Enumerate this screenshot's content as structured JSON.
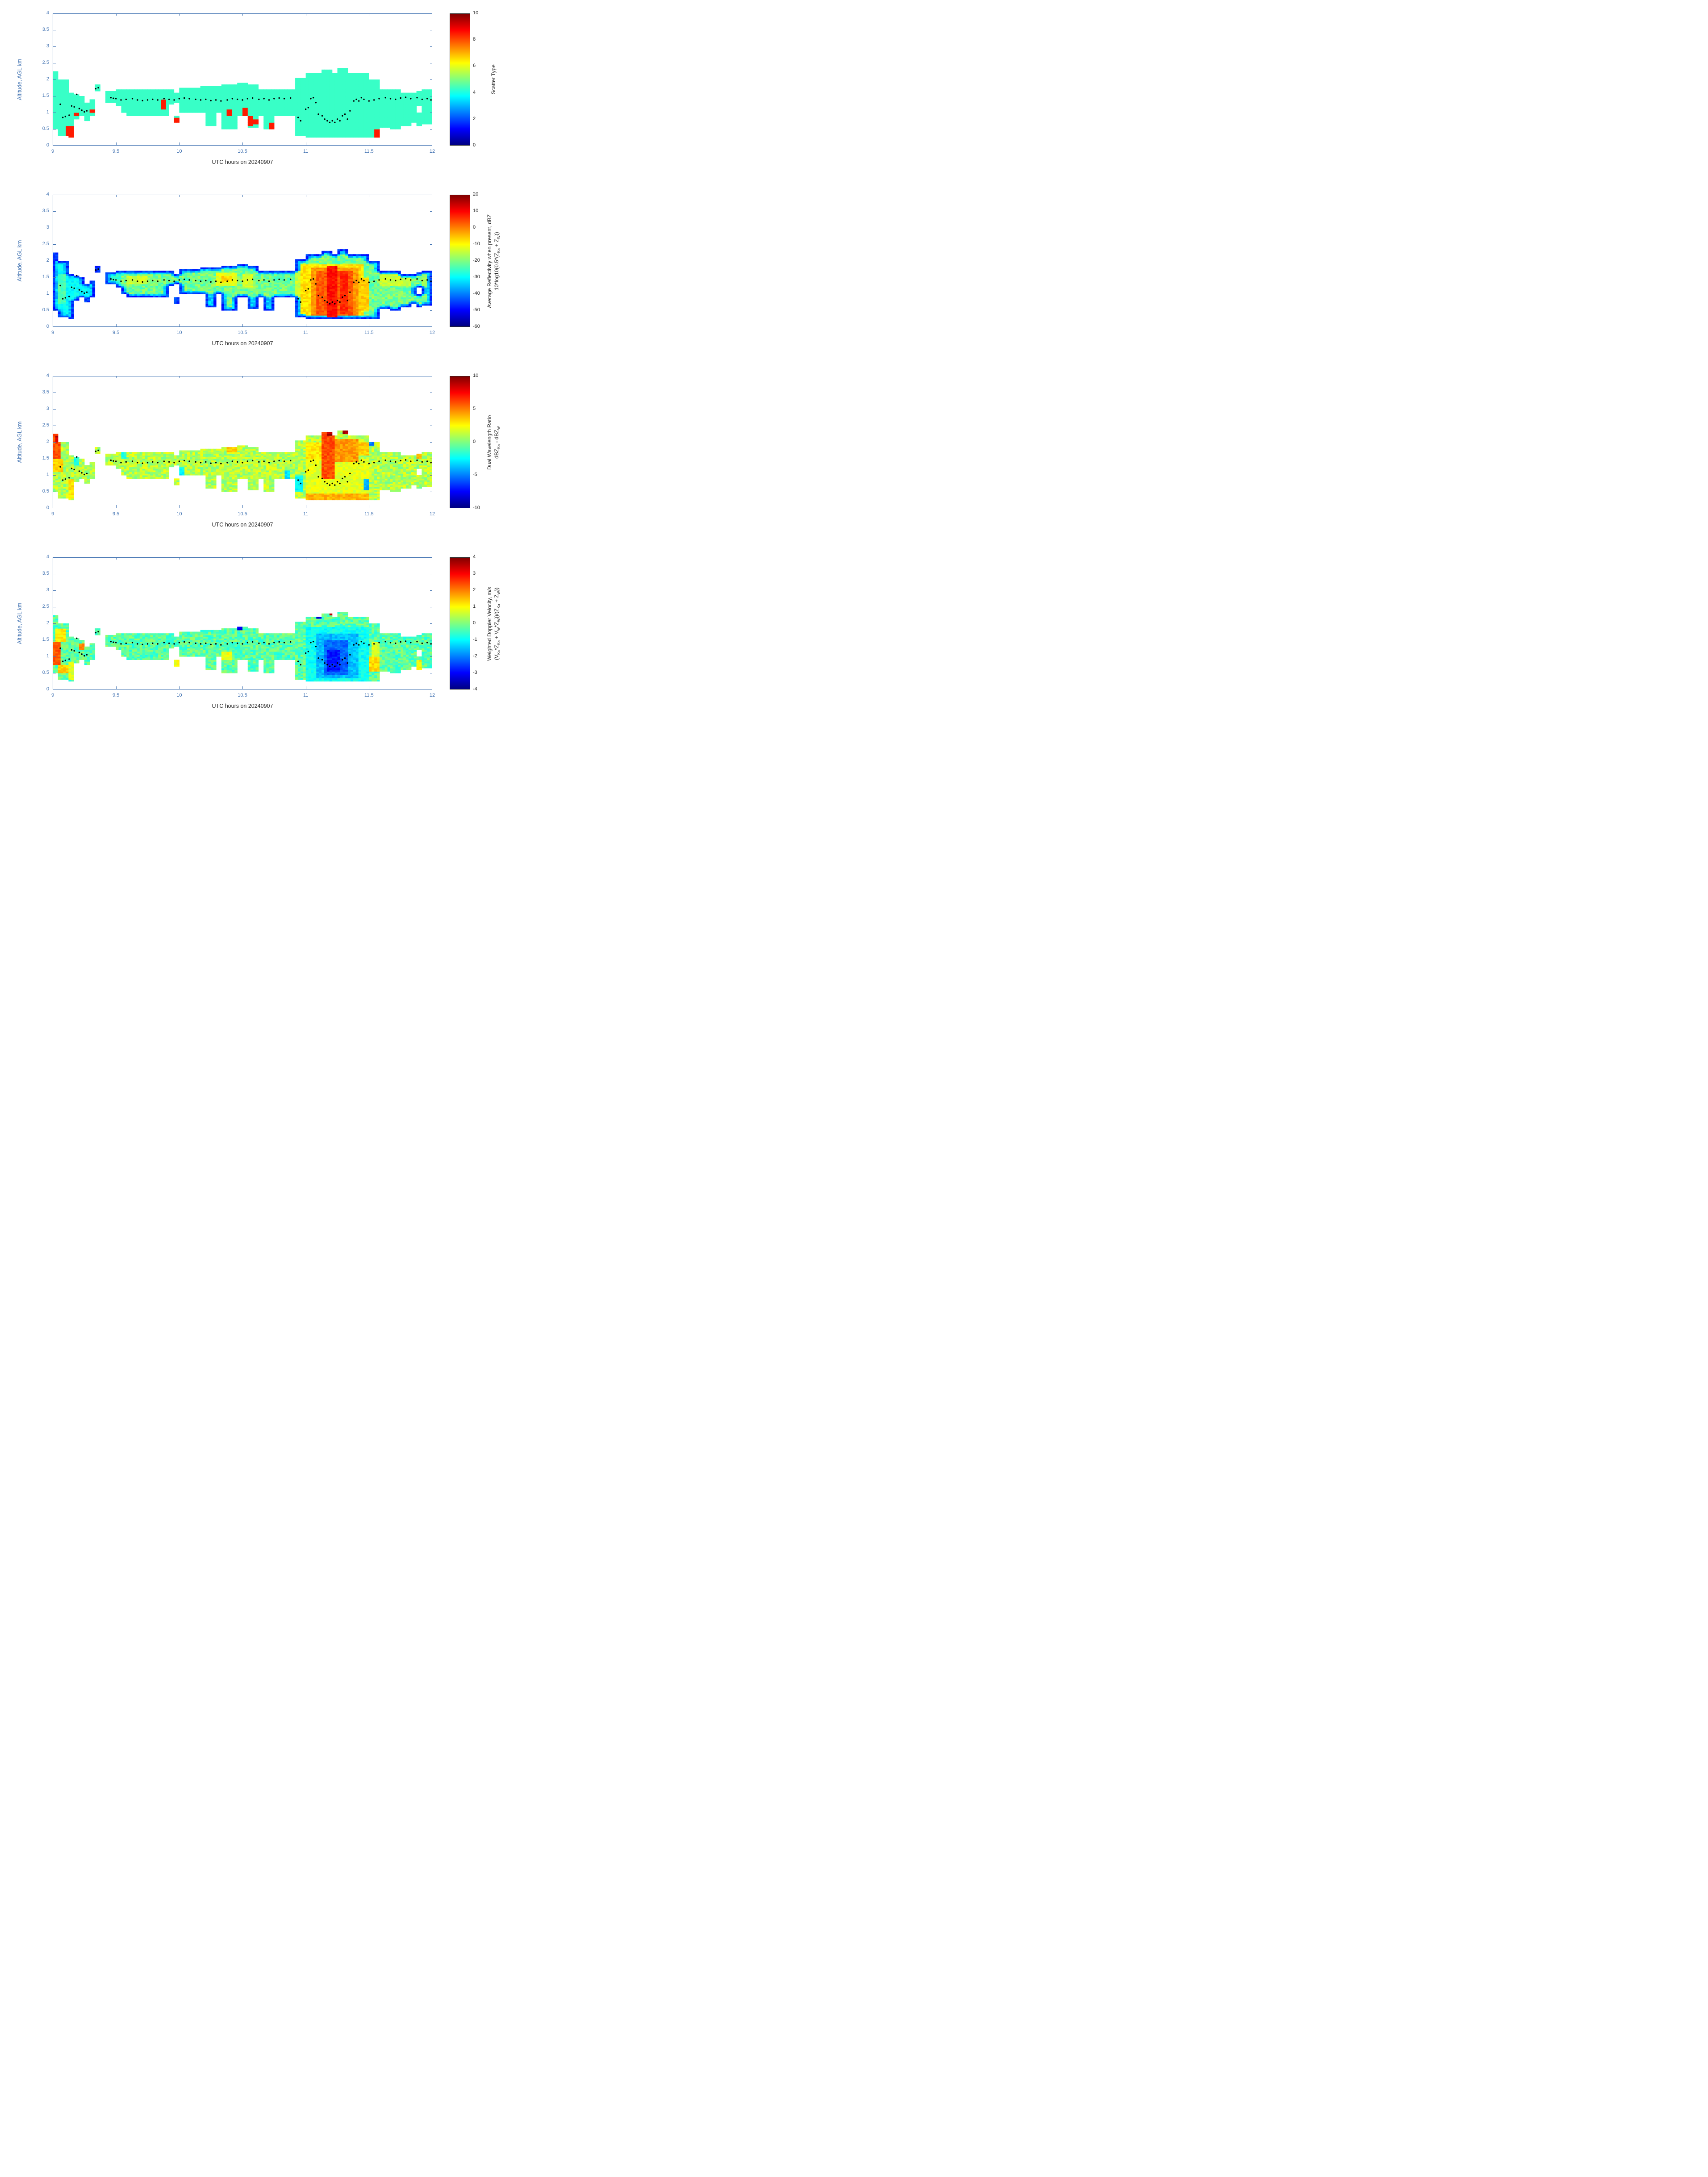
{
  "axes": {
    "x_label": "UTC hours on 20240907",
    "y_label": "Altitude, AGL km",
    "x_range": [
      9,
      12
    ],
    "y_range": [
      0,
      4
    ],
    "x_tick_labels": [
      "9",
      "9.5",
      "10",
      "10.5",
      "11",
      "11.5",
      "12"
    ],
    "x_tick_values": [
      9,
      9.5,
      10,
      10.5,
      11,
      11.5,
      12
    ],
    "y_tick_labels": [
      "0",
      "0.5",
      "1",
      "1.5",
      "2",
      "2.5",
      "3",
      "3.5",
      "4"
    ],
    "y_tick_values": [
      0,
      0.5,
      1,
      1.5,
      2,
      2.5,
      3,
      3.5,
      4
    ],
    "axis_color": "#4273b2",
    "label_color": "#262626"
  },
  "chart_shared": {
    "cloud_mask_rects": [
      [
        9.0,
        9.04,
        0.5,
        2.25
      ],
      [
        9.04,
        9.12,
        0.3,
        2.0
      ],
      [
        9.12,
        9.17,
        0.25,
        1.6
      ],
      [
        9.17,
        9.21,
        0.8,
        1.55
      ],
      [
        9.21,
        9.25,
        0.9,
        1.5
      ],
      [
        9.25,
        9.29,
        0.75,
        1.3
      ],
      [
        9.29,
        9.33,
        0.9,
        1.4
      ],
      [
        9.33,
        9.38,
        1.65,
        1.85
      ],
      [
        9.42,
        9.5,
        1.3,
        1.65
      ],
      [
        9.5,
        9.54,
        1.2,
        1.7
      ],
      [
        9.54,
        9.58,
        1.0,
        1.7
      ],
      [
        9.58,
        9.92,
        0.9,
        1.7
      ],
      [
        9.92,
        9.96,
        1.25,
        1.7
      ],
      [
        9.96,
        10.0,
        0.7,
        0.9
      ],
      [
        9.96,
        10.0,
        1.3,
        1.6
      ],
      [
        10.0,
        10.17,
        1.0,
        1.75
      ],
      [
        10.17,
        10.33,
        1.0,
        1.8
      ],
      [
        10.21,
        10.29,
        0.6,
        1.0
      ],
      [
        10.33,
        10.46,
        0.5,
        1.85
      ],
      [
        10.46,
        10.54,
        0.9,
        1.9
      ],
      [
        10.54,
        10.63,
        0.55,
        1.85
      ],
      [
        10.63,
        10.92,
        0.9,
        1.7
      ],
      [
        10.67,
        10.75,
        0.5,
        0.9
      ],
      [
        10.92,
        11.0,
        0.3,
        2.05
      ],
      [
        11.0,
        11.5,
        0.25,
        2.2
      ],
      [
        11.13,
        11.21,
        2.2,
        2.3
      ],
      [
        11.25,
        11.33,
        2.2,
        2.35
      ],
      [
        11.5,
        11.58,
        0.25,
        2.0
      ],
      [
        11.58,
        11.67,
        0.55,
        1.7
      ],
      [
        11.67,
        11.75,
        0.5,
        1.7
      ],
      [
        11.75,
        11.83,
        0.6,
        1.6
      ],
      [
        11.83,
        11.87,
        0.7,
        1.6
      ],
      [
        11.87,
        11.92,
        0.6,
        1.0
      ],
      [
        11.87,
        11.92,
        1.2,
        1.65
      ],
      [
        11.92,
        12.0,
        0.65,
        1.7
      ]
    ],
    "melting_layer_dots": [
      [
        9.06,
        1.25
      ],
      [
        9.08,
        0.85
      ],
      [
        9.1,
        0.88
      ],
      [
        9.13,
        0.92
      ],
      [
        9.15,
        1.2
      ],
      [
        9.17,
        1.17
      ],
      [
        9.19,
        1.55
      ],
      [
        9.21,
        1.12
      ],
      [
        9.23,
        1.07
      ],
      [
        9.25,
        1.02
      ],
      [
        9.27,
        1.05
      ],
      [
        9.34,
        1.72
      ],
      [
        9.36,
        1.75
      ],
      [
        9.46,
        1.45
      ],
      [
        9.48,
        1.43
      ],
      [
        9.5,
        1.42
      ],
      [
        9.54,
        1.38
      ],
      [
        9.58,
        1.4
      ],
      [
        9.63,
        1.42
      ],
      [
        9.67,
        1.38
      ],
      [
        9.71,
        1.36
      ],
      [
        9.75,
        1.38
      ],
      [
        9.79,
        1.4
      ],
      [
        9.83,
        1.38
      ],
      [
        9.88,
        1.42
      ],
      [
        9.92,
        1.4
      ],
      [
        9.96,
        1.38
      ],
      [
        10.0,
        1.42
      ],
      [
        10.04,
        1.44
      ],
      [
        10.08,
        1.42
      ],
      [
        10.13,
        1.4
      ],
      [
        10.17,
        1.38
      ],
      [
        10.21,
        1.4
      ],
      [
        10.25,
        1.36
      ],
      [
        10.29,
        1.38
      ],
      [
        10.33,
        1.35
      ],
      [
        10.38,
        1.38
      ],
      [
        10.42,
        1.42
      ],
      [
        10.46,
        1.4
      ],
      [
        10.5,
        1.38
      ],
      [
        10.54,
        1.42
      ],
      [
        10.58,
        1.44
      ],
      [
        10.63,
        1.4
      ],
      [
        10.67,
        1.42
      ],
      [
        10.71,
        1.38
      ],
      [
        10.75,
        1.42
      ],
      [
        10.79,
        1.44
      ],
      [
        10.83,
        1.42
      ],
      [
        10.88,
        1.44
      ],
      [
        10.94,
        0.85
      ],
      [
        10.96,
        0.75
      ],
      [
        11.0,
        1.1
      ],
      [
        11.02,
        1.15
      ],
      [
        11.04,
        1.42
      ],
      [
        11.06,
        1.45
      ],
      [
        11.08,
        1.3
      ],
      [
        11.1,
        0.95
      ],
      [
        11.13,
        0.9
      ],
      [
        11.15,
        0.8
      ],
      [
        11.17,
        0.75
      ],
      [
        11.19,
        0.7
      ],
      [
        11.21,
        0.75
      ],
      [
        11.23,
        0.7
      ],
      [
        11.25,
        0.8
      ],
      [
        11.27,
        0.75
      ],
      [
        11.29,
        0.9
      ],
      [
        11.31,
        0.95
      ],
      [
        11.33,
        0.8
      ],
      [
        11.35,
        1.05
      ],
      [
        11.38,
        1.35
      ],
      [
        11.4,
        1.4
      ],
      [
        11.42,
        1.35
      ],
      [
        11.44,
        1.45
      ],
      [
        11.46,
        1.4
      ],
      [
        11.5,
        1.35
      ],
      [
        11.54,
        1.38
      ],
      [
        11.58,
        1.42
      ],
      [
        11.63,
        1.45
      ],
      [
        11.67,
        1.42
      ],
      [
        11.71,
        1.4
      ],
      [
        11.75,
        1.44
      ],
      [
        11.79,
        1.46
      ],
      [
        11.83,
        1.42
      ],
      [
        11.88,
        1.45
      ],
      [
        11.92,
        1.4
      ],
      [
        11.96,
        1.42
      ],
      [
        11.99,
        1.38
      ]
    ]
  },
  "chart_data": [
    {
      "type": "heatmap",
      "name": "scatter-type",
      "colorbar_label_lines": [
        "Scatter Type"
      ],
      "colormap": "jet",
      "clim": [
        0,
        10
      ],
      "colorbar_tick_labels": [
        "0",
        "2",
        "4",
        "6",
        "8",
        "10"
      ],
      "colorbar_tick_values": [
        0,
        2,
        4,
        6,
        8,
        10
      ],
      "base_value": 4.3,
      "noise": 0,
      "patches": [
        [
          9.1,
          9.17,
          0.25,
          0.6,
          8.5
        ],
        [
          9.17,
          9.21,
          0.9,
          1.0,
          8.5
        ],
        [
          9.29,
          9.33,
          1.0,
          1.1,
          8.5
        ],
        [
          9.85,
          9.9,
          1.1,
          1.4,
          8.5
        ],
        [
          9.96,
          10.0,
          0.7,
          0.85,
          8.5
        ],
        [
          10.38,
          10.42,
          0.9,
          1.1,
          8.5
        ],
        [
          10.5,
          10.54,
          0.85,
          1.15,
          8.5
        ],
        [
          10.54,
          10.58,
          0.6,
          0.9,
          8.5
        ],
        [
          10.58,
          10.63,
          0.65,
          0.8,
          8.5
        ],
        [
          10.71,
          10.75,
          0.5,
          0.7,
          8.5
        ],
        [
          11.54,
          11.58,
          0.25,
          0.5,
          8.5
        ]
      ]
    },
    {
      "type": "heatmap",
      "name": "average-reflectivity",
      "colorbar_label_lines": [
        "Average Reflectivity when present, dBZ",
        "10*log10(0.5*(Z_{Ka} + Z_{W}))"
      ],
      "colormap": "jet",
      "clim": [
        -60,
        20
      ],
      "colorbar_tick_labels": [
        "-60",
        "-50",
        "-40",
        "-30",
        "-20",
        "-10",
        "0",
        "10",
        "20"
      ],
      "colorbar_tick_values": [
        -60,
        -50,
        -40,
        -30,
        -20,
        -10,
        0,
        10,
        20
      ],
      "base_value": -21,
      "noise": 5,
      "edge_cool": [
        -46,
        -34
      ],
      "patches": [
        [
          9.0,
          9.33,
          0.25,
          2.25,
          -30
        ],
        [
          9.04,
          9.1,
          0.7,
          1.6,
          -24
        ],
        [
          9.33,
          9.38,
          1.65,
          1.85,
          -34
        ],
        [
          9.42,
          9.54,
          1.3,
          1.7,
          -26
        ],
        [
          9.58,
          9.75,
          1.3,
          1.55,
          -14
        ],
        [
          10.29,
          10.46,
          1.25,
          1.65,
          -12
        ],
        [
          10.33,
          10.42,
          1.35,
          1.55,
          -7
        ],
        [
          10.5,
          10.58,
          1.2,
          1.6,
          -13
        ],
        [
          10.92,
          11.0,
          0.4,
          1.7,
          -14
        ],
        [
          10.96,
          11.46,
          0.3,
          1.9,
          -8
        ],
        [
          11.58,
          11.83,
          1.25,
          1.6,
          -14
        ],
        [
          11.92,
          12.0,
          1.25,
          1.6,
          -18
        ]
      ],
      "patches_post": [
        [
          11.04,
          11.42,
          0.35,
          1.8,
          -2
        ],
        [
          11.08,
          11.38,
          0.35,
          1.7,
          3
        ],
        [
          11.17,
          11.25,
          0.3,
          1.85,
          9
        ],
        [
          11.28,
          11.33,
          0.4,
          1.7,
          7
        ],
        [
          11.42,
          11.5,
          0.5,
          1.5,
          -6
        ]
      ]
    },
    {
      "type": "heatmap",
      "name": "dual-wavelength-ratio",
      "colorbar_label_lines": [
        "Dual Wavelength Ratio",
        "dBZ_{Ka} - dBZ_{W}"
      ],
      "colormap": "jet",
      "clim": [
        -10,
        10
      ],
      "colorbar_tick_labels": [
        "-10",
        "-5",
        "0",
        "5",
        "10"
      ],
      "colorbar_tick_values": [
        -10,
        -5,
        0,
        5,
        10
      ],
      "base_value": 1.0,
      "noise": 1.4,
      "patches": [
        [
          9.0,
          9.06,
          1.5,
          2.25,
          6
        ],
        [
          9.02,
          9.06,
          2.0,
          2.2,
          8.5
        ],
        [
          9.0,
          9.08,
          1.1,
          1.5,
          3.5
        ],
        [
          9.12,
          9.17,
          0.3,
          0.9,
          3
        ],
        [
          9.17,
          9.21,
          1.3,
          1.55,
          -2
        ],
        [
          9.54,
          9.58,
          1.5,
          1.7,
          -2
        ],
        [
          10.0,
          10.04,
          1.0,
          1.25,
          -2.5
        ],
        [
          10.38,
          10.46,
          1.7,
          1.85,
          3.5
        ],
        [
          10.83,
          10.88,
          0.9,
          1.15,
          -3
        ],
        [
          10.92,
          10.97,
          0.5,
          1.0,
          -2.5
        ],
        [
          11.0,
          11.5,
          0.25,
          0.45,
          4
        ],
        [
          11.0,
          11.5,
          0.45,
          1.5,
          2
        ],
        [
          11.0,
          11.13,
          1.5,
          2.0,
          3
        ],
        [
          11.13,
          11.23,
          0.9,
          2.3,
          6
        ],
        [
          11.17,
          11.21,
          2.2,
          2.3,
          9
        ],
        [
          11.23,
          11.42,
          1.4,
          2.1,
          4.5
        ],
        [
          11.29,
          11.33,
          2.25,
          2.35,
          9
        ],
        [
          11.42,
          11.5,
          1.6,
          2.0,
          3.5
        ],
        [
          11.46,
          11.5,
          0.55,
          0.9,
          -4
        ],
        [
          11.5,
          11.54,
          1.9,
          2.0,
          -5
        ],
        [
          11.87,
          11.92,
          1.5,
          1.65,
          4
        ]
      ]
    },
    {
      "type": "heatmap",
      "name": "weighted-doppler-velocity",
      "colorbar_label_lines": [
        "Weighted Doppler Velocity, m/s",
        "(V_{Ka}*Z_{Ka} + V_{W}*Z_{W}))/(Z_{Ka} + Z_{W}))"
      ],
      "colormap": "jet",
      "clim": [
        -4,
        4
      ],
      "colorbar_tick_labels": [
        "-4",
        "-3",
        "-2",
        "-1",
        "0",
        "1",
        "2",
        "3",
        "4"
      ],
      "colorbar_tick_values": [
        -4,
        -3,
        -2,
        -1,
        0,
        1,
        2,
        3,
        4
      ],
      "base_value": -0.3,
      "noise": 0.55,
      "patches": [
        [
          9.0,
          9.06,
          0.75,
          1.45,
          2.3
        ],
        [
          9.02,
          9.1,
          1.45,
          1.85,
          1.1
        ],
        [
          9.04,
          9.12,
          0.5,
          0.75,
          1.4
        ],
        [
          9.12,
          9.17,
          0.3,
          0.85,
          0.8
        ],
        [
          9.21,
          9.25,
          1.2,
          1.4,
          1.9
        ],
        [
          9.96,
          10.0,
          0.7,
          0.9,
          0.9
        ],
        [
          10.33,
          10.42,
          0.9,
          1.15,
          0.9
        ],
        [
          10.46,
          10.5,
          1.8,
          1.95,
          -3.2
        ],
        [
          11.0,
          11.5,
          0.25,
          1.9,
          -0.9
        ],
        [
          11.08,
          11.42,
          0.35,
          1.7,
          -1.5
        ],
        [
          11.15,
          11.33,
          0.45,
          1.5,
          -2.2
        ],
        [
          11.17,
          11.27,
          0.55,
          1.2,
          -2.8
        ],
        [
          11.19,
          11.23,
          2.25,
          2.35,
          3.5
        ],
        [
          11.08,
          11.12,
          2.15,
          2.3,
          -3.2
        ],
        [
          11.5,
          11.58,
          0.55,
          1.0,
          1.3
        ],
        [
          11.52,
          11.58,
          1.0,
          1.45,
          0.7
        ],
        [
          11.87,
          11.92,
          0.6,
          0.9,
          1.0
        ]
      ]
    }
  ]
}
